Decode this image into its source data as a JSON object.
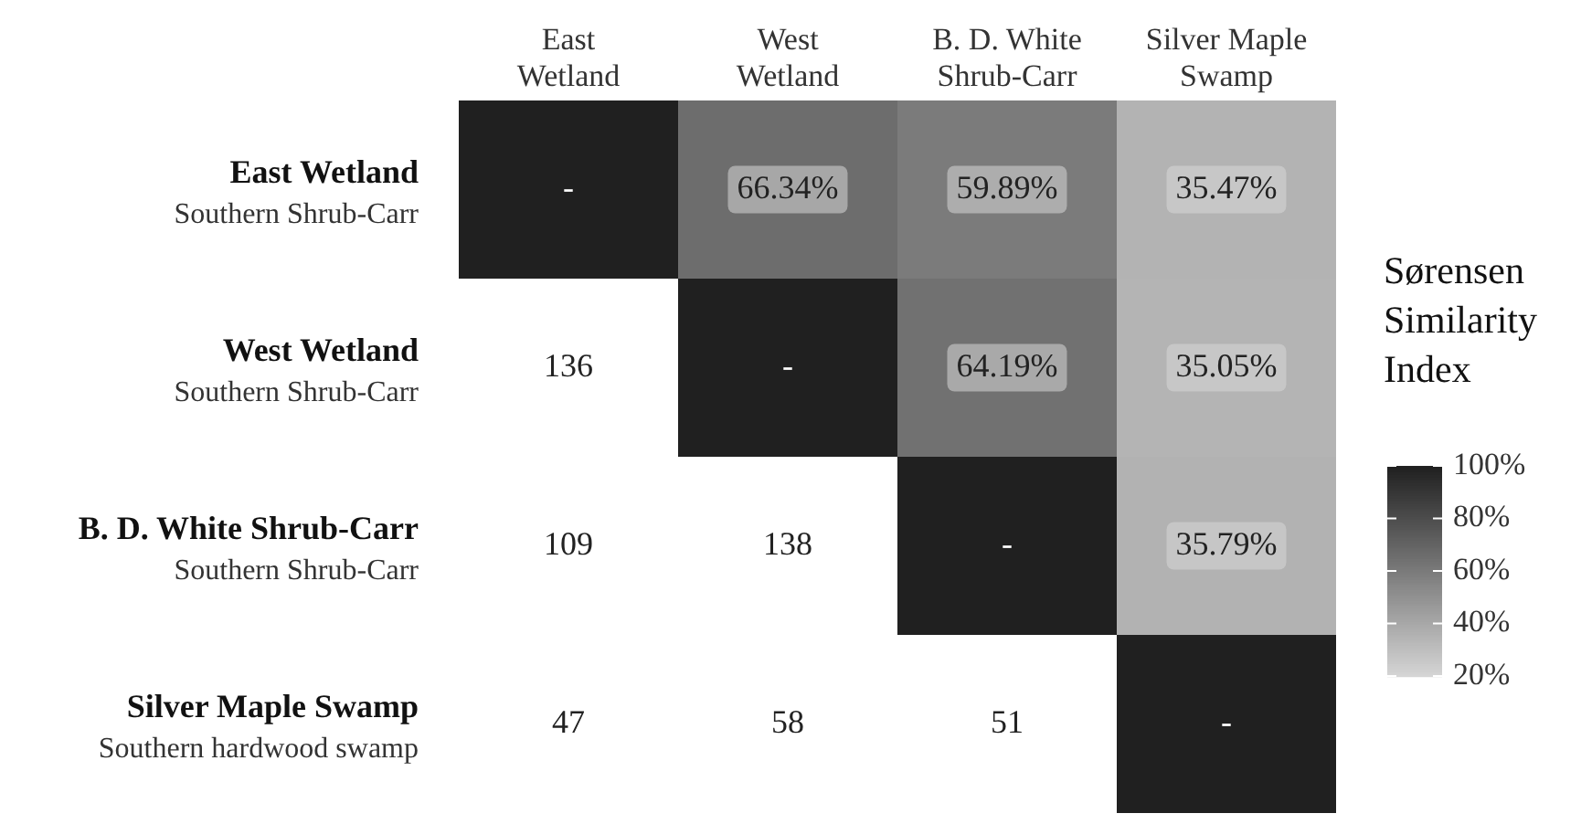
{
  "chart_data": {
    "type": "heatmap",
    "categories": [
      "East\nWetland",
      "West\nWetland",
      "B. D. White\nShrub-Carr",
      "Silver Maple\nSwamp"
    ],
    "y_categories": [
      "East Wetland\nSouthern Shrub-Carr",
      "West Wetland\nSouthern Shrub-Carr",
      "B. D. White Shrub-Carr\nSouthern Shrub-Carr",
      "Silver Maple Swamp\nSouthern hardwood swamp"
    ],
    "cells": [
      [
        100,
        66.34,
        59.89,
        35.47
      ],
      [
        null,
        100,
        64.19,
        35.05
      ],
      [
        null,
        null,
        100,
        35.79
      ],
      [
        null,
        null,
        null,
        100
      ]
    ],
    "cell_labels": [
      [
        "-",
        "66.34%",
        "59.89%",
        "35.47%"
      ],
      [
        "136",
        "-",
        "64.19%",
        "35.05%"
      ],
      [
        "109",
        "138",
        "-",
        "35.79%"
      ],
      [
        "47",
        "58",
        "51",
        "-"
      ]
    ],
    "clabel": "Sørensen\nSimilarity\nIndex",
    "clim": [
      20,
      100
    ],
    "cticks": [
      {
        "value": 20,
        "label": "20%"
      },
      {
        "value": 40,
        "label": "40%"
      },
      {
        "value": 60,
        "label": "60%"
      },
      {
        "value": 80,
        "label": "80%"
      },
      {
        "value": 100,
        "label": "100%"
      }
    ]
  }
}
